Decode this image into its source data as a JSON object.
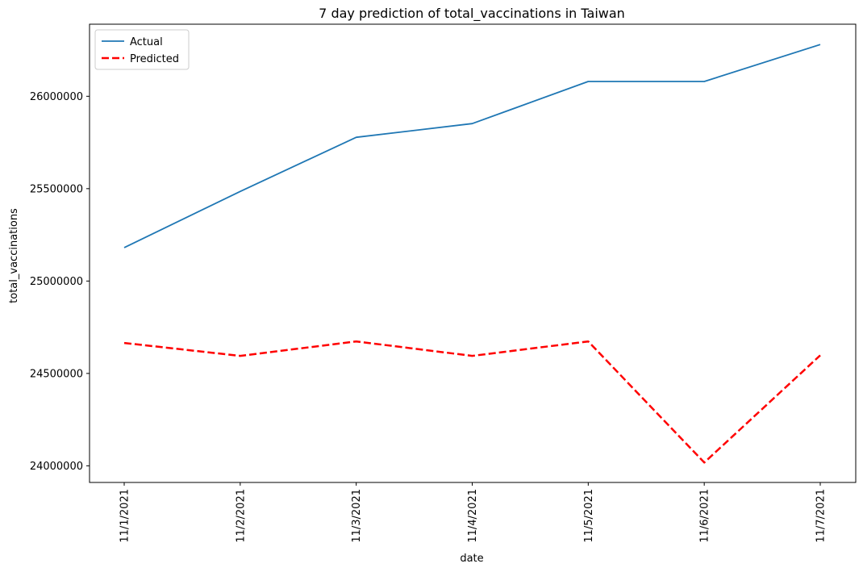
{
  "chart_data": {
    "type": "line",
    "title": "7 day prediction of total_vaccinations in Taiwan",
    "xlabel": "date",
    "ylabel": "total_vaccinations",
    "categories": [
      "11/1/2021",
      "11/2/2021",
      "11/3/2021",
      "11/4/2021",
      "11/5/2021",
      "11/6/2021",
      "11/7/2021"
    ],
    "yticks": [
      "24000000",
      "24500000",
      "25000000",
      "25500000",
      "26000000"
    ],
    "ylim": [
      23910000,
      26390000
    ],
    "series": [
      {
        "name": "Actual",
        "color": "#1f77b4",
        "dashed": false,
        "values": [
          25181000,
          25485000,
          25778000,
          25852000,
          26080000,
          26080000,
          26280000
        ]
      },
      {
        "name": "Predicted",
        "color": "#ff0000",
        "dashed": true,
        "values": [
          24665000,
          24595000,
          24673000,
          24595000,
          24673000,
          24018000,
          24598000
        ]
      }
    ],
    "legend_position": "top-left",
    "grid": false
  }
}
